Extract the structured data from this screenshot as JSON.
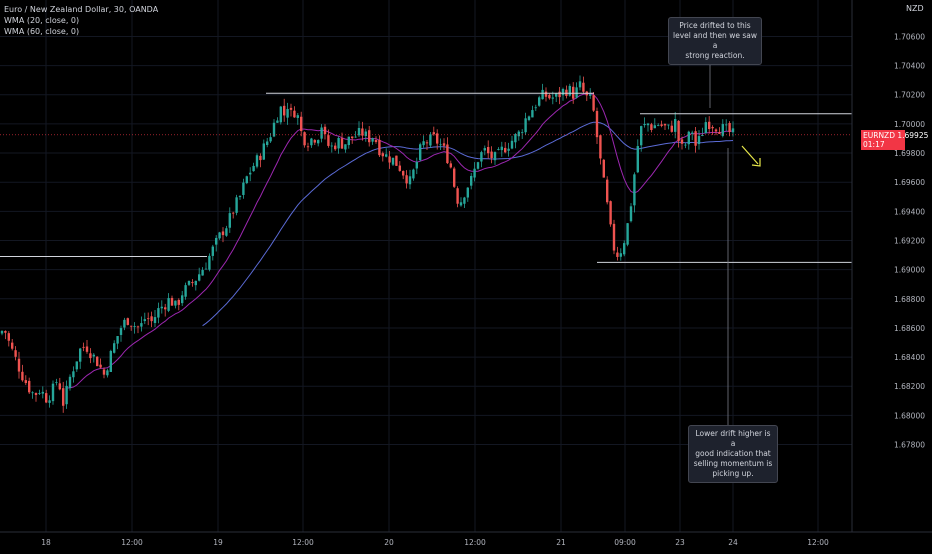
{
  "legend": {
    "title": "Euro / New Zealand Dollar, 30, OANDA",
    "wma1": "WMA (20, close, 0)",
    "wma2": "WMA (60, close, 0)"
  },
  "currency_label": "NZD",
  "price_tag": {
    "symbol": "EURNZD",
    "price": "1.69925",
    "countdown": "01:17"
  },
  "annotations": {
    "top": [
      "Price drifted to this",
      "level and then we saw a",
      "strong reaction."
    ],
    "bottom": [
      "Lower drift higher is a",
      "good indication that",
      "selling momentum is",
      "picking up."
    ]
  },
  "colors": {
    "background": "#000000",
    "grid": "#131722",
    "axis_text": "#b2b5be",
    "bull": "#26a69a",
    "bear": "#ef5350",
    "wma20": "#9c27b0",
    "wma60": "#5b6bd6",
    "levels": "#d1d4dc",
    "arrow": "#e8e84a",
    "price_tag": "#f23645"
  },
  "chart_data": {
    "type": "candlestick",
    "ylim": [
      1.672,
      1.7085
    ],
    "y_ticks": [
      "1.70600",
      "1.70400",
      "1.70200",
      "1.70000",
      "1.69800",
      "1.69600",
      "1.69400",
      "1.69200",
      "1.69000",
      "1.68800",
      "1.68600",
      "1.68400",
      "1.68200",
      "1.68000",
      "1.67800"
    ],
    "x_ticks": [
      "18",
      "12:00",
      "19",
      "12:00",
      "20",
      "12:00",
      "21",
      "09:00",
      "23",
      "24",
      "12:00"
    ],
    "levels": [
      {
        "price": 1.6909,
        "from": 0,
        "to": 207
      },
      {
        "price": 1.7021,
        "from": 266,
        "to": 594
      },
      {
        "price": 1.7007,
        "from": 640,
        "to": 852
      },
      {
        "price": 1.6905,
        "from": 597,
        "to": 852
      }
    ],
    "close_path": [
      [
        0,
        1.6856
      ],
      [
        4,
        1.686
      ],
      [
        10,
        1.6848
      ],
      [
        16,
        1.6838
      ],
      [
        22,
        1.6828
      ],
      [
        28,
        1.682
      ],
      [
        34,
        1.6814
      ],
      [
        40,
        1.6818
      ],
      [
        46,
        1.6812
      ],
      [
        52,
        1.6816
      ],
      [
        58,
        1.6826
      ],
      [
        64,
        1.6806
      ],
      [
        68,
        1.6822
      ],
      [
        74,
        1.6834
      ],
      [
        80,
        1.6845
      ],
      [
        86,
        1.6848
      ],
      [
        92,
        1.6842
      ],
      [
        98,
        1.6836
      ],
      [
        104,
        1.6828
      ],
      [
        110,
        1.684
      ],
      [
        116,
        1.6852
      ],
      [
        122,
        1.6862
      ],
      [
        128,
        1.6866
      ],
      [
        134,
        1.6862
      ],
      [
        140,
        1.686
      ],
      [
        146,
        1.6868
      ],
      [
        152,
        1.6864
      ],
      [
        158,
        1.6872
      ],
      [
        164,
        1.6876
      ],
      [
        170,
        1.688
      ],
      [
        176,
        1.6874
      ],
      [
        182,
        1.6884
      ],
      [
        188,
        1.6888
      ],
      [
        194,
        1.6892
      ],
      [
        200,
        1.6898
      ],
      [
        206,
        1.6904
      ],
      [
        210,
        1.691
      ],
      [
        216,
        1.6918
      ],
      [
        222,
        1.6926
      ],
      [
        228,
        1.6932
      ],
      [
        234,
        1.6942
      ],
      [
        240,
        1.695
      ],
      [
        246,
        1.6962
      ],
      [
        252,
        1.697
      ],
      [
        258,
        1.6976
      ],
      [
        264,
        1.6984
      ],
      [
        270,
        1.6992
      ],
      [
        276,
        1.7004
      ],
      [
        280,
        1.7012
      ],
      [
        284,
        1.7006
      ],
      [
        288,
        1.7014
      ],
      [
        292,
        1.7004
      ],
      [
        296,
        1.7012
      ],
      [
        300,
        1.6996
      ],
      [
        304,
        1.699
      ],
      [
        308,
        1.6988
      ],
      [
        312,
        1.699
      ],
      [
        318,
        1.6992
      ],
      [
        322,
        1.7
      ],
      [
        326,
        1.6986
      ],
      [
        332,
        1.6984
      ],
      [
        338,
        1.6988
      ],
      [
        344,
        1.6986
      ],
      [
        350,
        1.699
      ],
      [
        356,
        1.6992
      ],
      [
        362,
        1.6994
      ],
      [
        368,
        1.699
      ],
      [
        374,
        1.6992
      ],
      [
        380,
        1.6982
      ],
      [
        386,
        1.6978
      ],
      [
        392,
        1.6976
      ],
      [
        398,
        1.6972
      ],
      [
        404,
        1.6966
      ],
      [
        410,
        1.696
      ],
      [
        416,
        1.6972
      ],
      [
        422,
        1.6986
      ],
      [
        428,
        1.6988
      ],
      [
        434,
        1.699
      ],
      [
        440,
        1.6986
      ],
      [
        446,
        1.698
      ],
      [
        452,
        1.6968
      ],
      [
        456,
        1.695
      ],
      [
        460,
        1.6946
      ],
      [
        466,
        1.6956
      ],
      [
        472,
        1.6962
      ],
      [
        478,
        1.6976
      ],
      [
        484,
        1.6982
      ],
      [
        490,
        1.6978
      ],
      [
        496,
        1.6976
      ],
      [
        502,
        1.6982
      ],
      [
        508,
        1.6986
      ],
      [
        514,
        1.699
      ],
      [
        520,
        1.6994
      ],
      [
        526,
        1.7004
      ],
      [
        532,
        1.701
      ],
      [
        538,
        1.7016
      ],
      [
        544,
        1.702
      ],
      [
        550,
        1.7018
      ],
      [
        556,
        1.7018
      ],
      [
        562,
        1.7022
      ],
      [
        568,
        1.7024
      ],
      [
        574,
        1.702
      ],
      [
        580,
        1.7026
      ],
      [
        586,
        1.7018
      ],
      [
        592,
        1.7016
      ],
      [
        596,
        1.6996
      ],
      [
        600,
        1.6976
      ],
      [
        604,
        1.6958
      ],
      [
        608,
        1.694
      ],
      [
        612,
        1.692
      ],
      [
        616,
        1.691
      ],
      [
        620,
        1.6912
      ],
      [
        624,
        1.692
      ],
      [
        628,
        1.6932
      ],
      [
        632,
        1.695
      ],
      [
        636,
        1.6976
      ],
      [
        640,
        1.6996
      ],
      [
        644,
        1.6998
      ],
      [
        648,
        1.7
      ],
      [
        652,
        1.6998
      ],
      [
        658,
        1.7
      ],
      [
        664,
        1.6998
      ],
      [
        670,
        1.6996
      ],
      [
        676,
        1.7002
      ],
      [
        680,
        1.6982
      ],
      [
        684,
        1.6984
      ],
      [
        688,
        1.699
      ],
      [
        692,
        1.6996
      ],
      [
        696,
        1.6984
      ],
      [
        700,
        1.699
      ],
      [
        706,
        1.7002
      ],
      [
        712,
        1.7
      ],
      [
        718,
        1.6998
      ],
      [
        724,
        1.6996
      ],
      [
        730,
        1.6994
      ],
      [
        734,
        1.6992
      ]
    ]
  }
}
